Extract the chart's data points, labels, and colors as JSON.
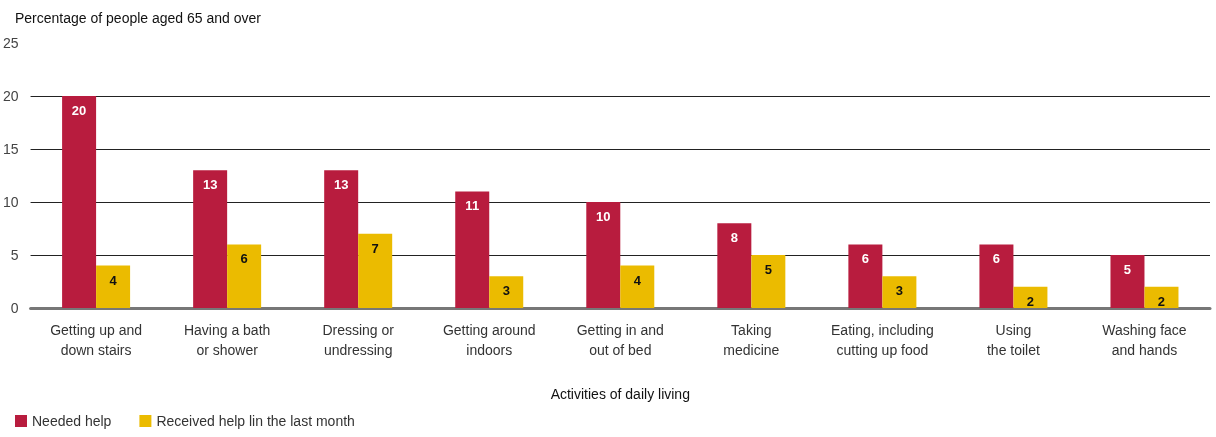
{
  "chart_data": {
    "type": "bar",
    "ylabel": "Percentage of people aged 65 and over",
    "xlabel": "Activities of daily living",
    "categories": [
      "Getting up and\ndown stairs",
      "Having a bath\nor shower",
      "Dressing or\nundressing",
      "Getting around\nindoors",
      "Getting in and\nout of bed",
      "Taking\nmedicine",
      "Eating, including\ncutting up food",
      "Using\nthe toilet",
      "Washing face\nand hands"
    ],
    "series": [
      {
        "name": "Needed help",
        "color": "#b81c3e",
        "values": [
          20,
          13,
          13,
          11,
          10,
          8,
          6,
          6,
          5
        ]
      },
      {
        "name": "Received help lin the last month",
        "color": "#ebbb00",
        "values": [
          4,
          6,
          7,
          3,
          4,
          5,
          3,
          2,
          2
        ]
      }
    ],
    "ylim": [
      0,
      25
    ],
    "yticks": [
      0,
      5,
      10,
      15,
      20,
      25
    ],
    "grid": "y",
    "legend": "bottom left",
    "data_labels": true
  }
}
